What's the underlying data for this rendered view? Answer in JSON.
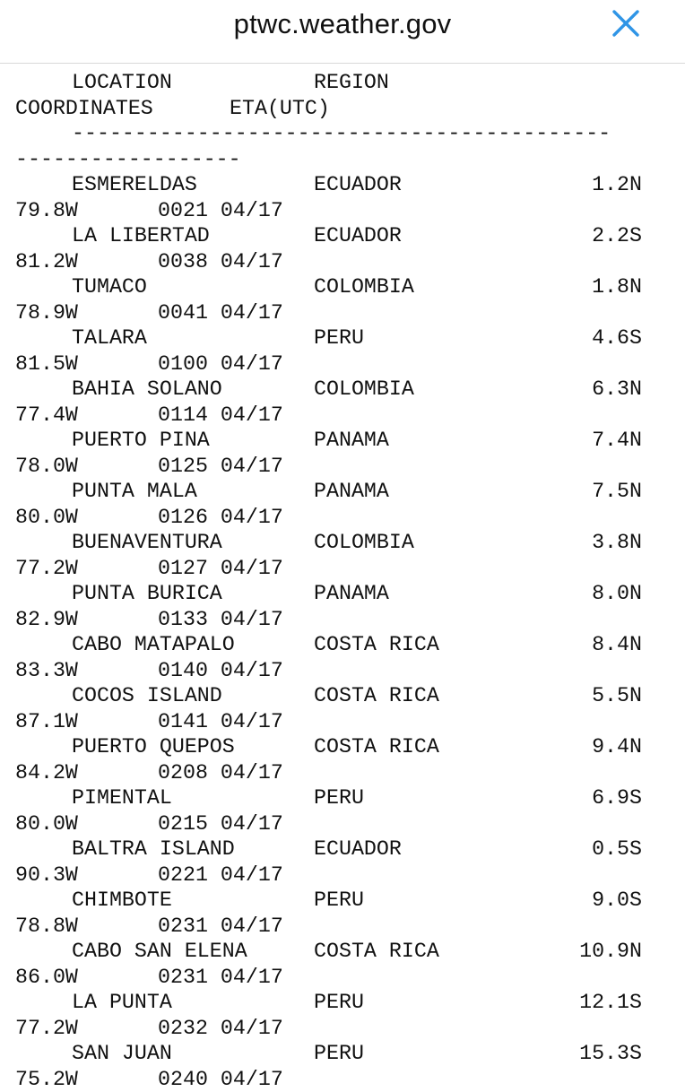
{
  "browser": {
    "url": "ptwc.weather.gov",
    "close_icon": "close-icon"
  },
  "table": {
    "headers": {
      "location": "LOCATION",
      "region": "REGION",
      "coordinates": "COORDINATES",
      "eta": "ETA(UTC)"
    },
    "separator_line1": "-------------------------------------------",
    "separator_line2": "------------------",
    "rows": [
      {
        "location": "ESMERELDAS",
        "region": "ECUADOR",
        "lat": "1.2N",
        "lon": "79.8W",
        "eta": "0021 04/17"
      },
      {
        "location": "LA LIBERTAD",
        "region": "ECUADOR",
        "lat": "2.2S",
        "lon": "81.2W",
        "eta": "0038 04/17"
      },
      {
        "location": "TUMACO",
        "region": "COLOMBIA",
        "lat": "1.8N",
        "lon": "78.9W",
        "eta": "0041 04/17"
      },
      {
        "location": "TALARA",
        "region": "PERU",
        "lat": "4.6S",
        "lon": "81.5W",
        "eta": "0100 04/17"
      },
      {
        "location": "BAHIA SOLANO",
        "region": "COLOMBIA",
        "lat": "6.3N",
        "lon": "77.4W",
        "eta": "0114 04/17"
      },
      {
        "location": "PUERTO PINA",
        "region": "PANAMA",
        "lat": "7.4N",
        "lon": "78.0W",
        "eta": "0125 04/17"
      },
      {
        "location": "PUNTA MALA",
        "region": "PANAMA",
        "lat": "7.5N",
        "lon": "80.0W",
        "eta": "0126 04/17"
      },
      {
        "location": "BUENAVENTURA",
        "region": "COLOMBIA",
        "lat": "3.8N",
        "lon": "77.2W",
        "eta": "0127 04/17"
      },
      {
        "location": "PUNTA BURICA",
        "region": "PANAMA",
        "lat": "8.0N",
        "lon": "82.9W",
        "eta": "0133 04/17"
      },
      {
        "location": "CABO MATAPALO",
        "region": "COSTA RICA",
        "lat": "8.4N",
        "lon": "83.3W",
        "eta": "0140 04/17"
      },
      {
        "location": "COCOS ISLAND",
        "region": "COSTA RICA",
        "lat": "5.5N",
        "lon": "87.1W",
        "eta": "0141 04/17"
      },
      {
        "location": "PUERTO QUEPOS",
        "region": "COSTA RICA",
        "lat": "9.4N",
        "lon": "84.2W",
        "eta": "0208 04/17"
      },
      {
        "location": "PIMENTAL",
        "region": "PERU",
        "lat": "6.9S",
        "lon": "80.0W",
        "eta": "0215 04/17"
      },
      {
        "location": "BALTRA ISLAND",
        "region": "ECUADOR",
        "lat": "0.5S",
        "lon": "90.3W",
        "eta": "0221 04/17"
      },
      {
        "location": "CHIMBOTE",
        "region": "PERU",
        "lat": "9.0S",
        "lon": "78.8W",
        "eta": "0231 04/17"
      },
      {
        "location": "CABO SAN ELENA",
        "region": "COSTA RICA",
        "lat": "10.9N",
        "lon": "86.0W",
        "eta": "0231 04/17"
      },
      {
        "location": "LA PUNTA",
        "region": "PERU",
        "lat": "12.1S",
        "lon": "77.2W",
        "eta": "0232 04/17"
      },
      {
        "location": "SAN JUAN",
        "region": "PERU",
        "lat": "15.3S",
        "lon": "75.2W",
        "eta": "0240 04/17"
      }
    ]
  },
  "colors": {
    "close_icon": "#2f95e6",
    "text": "#111111",
    "divider": "#d8d8d8"
  }
}
